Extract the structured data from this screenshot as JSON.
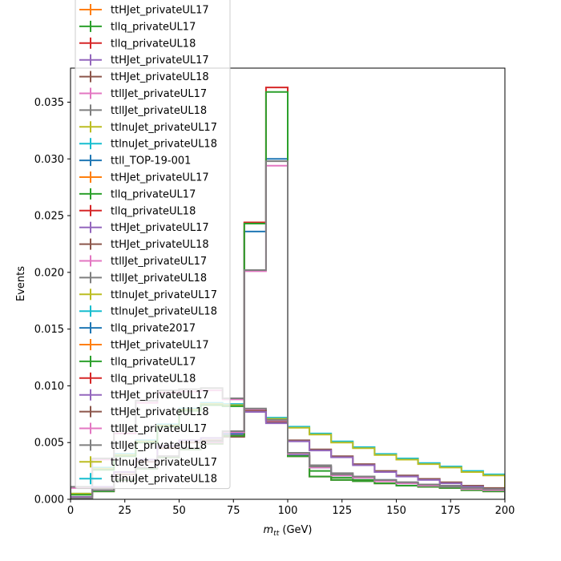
{
  "chart_data": {
    "type": "line",
    "drawstyle": "steps",
    "xlabel_main": "m",
    "xlabel_sub": "tt",
    "xlabel_unit": " (GeV)",
    "ylabel": "Events",
    "xlim": [
      0,
      200
    ],
    "ylim": [
      0,
      0.038
    ],
    "xticks": [
      "0",
      "25",
      "50",
      "75",
      "100",
      "125",
      "150",
      "175",
      "200"
    ],
    "yticks": [
      "0.000",
      "0.005",
      "0.010",
      "0.015",
      "0.020",
      "0.025",
      "0.030",
      "0.035"
    ],
    "grid": false,
    "legend_position": "upper-left",
    "bin_edges": [
      0,
      10,
      20,
      30,
      40,
      50,
      60,
      70,
      80,
      90,
      100,
      110,
      120,
      130,
      140,
      150,
      160,
      170,
      180,
      190,
      200
    ],
    "legend": [
      {
        "name": "ttHJet_privateUL17",
        "color": "#ff7f0e"
      },
      {
        "name": "tllq_privateUL17",
        "color": "#2ca02c"
      },
      {
        "name": "tllq_privateUL18",
        "color": "#d62728"
      },
      {
        "name": "ttHJet_privateUL17",
        "color": "#9467bd"
      },
      {
        "name": "ttHJet_privateUL18",
        "color": "#8c564b"
      },
      {
        "name": "ttllJet_privateUL17",
        "color": "#e377c2"
      },
      {
        "name": "ttllJet_privateUL18",
        "color": "#7f7f7f"
      },
      {
        "name": "ttlnuJet_privateUL17",
        "color": "#bcbd22"
      },
      {
        "name": "ttlnuJet_privateUL18",
        "color": "#17becf"
      },
      {
        "name": "ttll_TOP-19-001",
        "color": "#1f77b4"
      },
      {
        "name": "ttHJet_privateUL17",
        "color": "#ff7f0e"
      },
      {
        "name": "tllq_privateUL17",
        "color": "#2ca02c"
      },
      {
        "name": "tllq_privateUL18",
        "color": "#d62728"
      },
      {
        "name": "ttHJet_privateUL17",
        "color": "#9467bd"
      },
      {
        "name": "ttHJet_privateUL18",
        "color": "#8c564b"
      },
      {
        "name": "ttllJet_privateUL17",
        "color": "#e377c2"
      },
      {
        "name": "ttllJet_privateUL18",
        "color": "#7f7f7f"
      },
      {
        "name": "ttlnuJet_privateUL17",
        "color": "#bcbd22"
      },
      {
        "name": "ttlnuJet_privateUL18",
        "color": "#17becf"
      },
      {
        "name": "tllq_private2017",
        "color": "#1f77b4"
      },
      {
        "name": "ttHJet_privateUL17",
        "color": "#ff7f0e"
      },
      {
        "name": "tllq_privateUL17",
        "color": "#2ca02c"
      },
      {
        "name": "tllq_privateUL18",
        "color": "#d62728"
      },
      {
        "name": "ttHJet_privateUL17",
        "color": "#9467bd"
      },
      {
        "name": "ttHJet_privateUL18",
        "color": "#8c564b"
      },
      {
        "name": "ttllJet_privateUL17",
        "color": "#e377c2"
      },
      {
        "name": "ttllJet_privateUL18",
        "color": "#7f7f7f"
      },
      {
        "name": "ttlnuJet_privateUL17",
        "color": "#bcbd22"
      },
      {
        "name": "ttlnuJet_privateUL18",
        "color": "#17becf"
      }
    ],
    "series": [
      {
        "color": "#17becf",
        "values": [
          0.0005,
          0.0028,
          0.004,
          0.0052,
          0.0066,
          0.008,
          0.0085,
          0.0084,
          0.0079,
          0.0072,
          0.0064,
          0.0058,
          0.0051,
          0.0046,
          0.004,
          0.0036,
          0.0032,
          0.0029,
          0.0025,
          0.0022
        ]
      },
      {
        "color": "#bcbd22",
        "values": [
          0.0005,
          0.0027,
          0.0039,
          0.0051,
          0.0065,
          0.0079,
          0.0084,
          0.0083,
          0.0078,
          0.0071,
          0.0063,
          0.0057,
          0.005,
          0.0045,
          0.0039,
          0.0035,
          0.0031,
          0.0028,
          0.0024,
          0.0021
        ]
      },
      {
        "color": "#2ca02c",
        "values": [
          0.0004,
          0.0026,
          0.0038,
          0.005,
          0.0064,
          0.0078,
          0.0083,
          0.0082,
          0.0077,
          0.007,
          0.0038,
          0.0025,
          0.0019,
          0.0017,
          0.0014,
          0.0012,
          0.0011,
          0.001,
          0.0009,
          0.0008
        ]
      },
      {
        "color": "#e377c2",
        "values": [
          0.001,
          0.0035,
          0.0058,
          0.0085,
          0.0094,
          0.0095,
          0.0096,
          0.0088,
          0.0079,
          0.0069,
          0.004,
          0.0029,
          0.0022,
          0.0019,
          0.0016,
          0.0014,
          0.0013,
          0.0011,
          0.001,
          0.0008
        ]
      },
      {
        "color": "#7f7f7f",
        "values": [
          0.0011,
          0.0036,
          0.006,
          0.0087,
          0.0096,
          0.0097,
          0.0098,
          0.0089,
          0.008,
          0.007,
          0.0041,
          0.003,
          0.0023,
          0.002,
          0.0017,
          0.0015,
          0.0013,
          0.0012,
          0.001,
          0.0009
        ]
      },
      {
        "color": "#8c564b",
        "values": [
          0.0002,
          0.001,
          0.0022,
          0.0033,
          0.0045,
          0.005,
          0.0052,
          0.0055,
          0.0078,
          0.0068,
          0.0052,
          0.0044,
          0.0038,
          0.0031,
          0.0025,
          0.0021,
          0.0018,
          0.0015,
          0.0012,
          0.001
        ]
      },
      {
        "color": "#9467bd",
        "values": [
          0.0002,
          0.0011,
          0.0024,
          0.0035,
          0.0047,
          0.0052,
          0.0054,
          0.0057,
          0.0077,
          0.0067,
          0.0051,
          0.0043,
          0.0037,
          0.003,
          0.0024,
          0.002,
          0.0017,
          0.0014,
          0.0011,
          0.0009
        ]
      },
      {
        "color": "#1f77b4",
        "values": [
          0.0001,
          0.0008,
          0.0018,
          0.0028,
          0.0038,
          0.0045,
          0.005,
          0.0058,
          0.0236,
          0.03,
          0.0039,
          0.0028,
          0.0021,
          0.0019,
          0.0017,
          0.0014,
          0.0012,
          0.0011,
          0.001,
          0.0008
        ]
      },
      {
        "color": "#d62728",
        "values": [
          0.0001,
          0.0007,
          0.0017,
          0.0027,
          0.0037,
          0.0044,
          0.0049,
          0.0056,
          0.0244,
          0.0363,
          0.0038,
          0.002,
          0.0017,
          0.0016,
          0.0014,
          0.0012,
          0.0011,
          0.001,
          0.0008,
          0.0007
        ]
      },
      {
        "color": "#2ca02c",
        "values": [
          0.0001,
          0.0007,
          0.0017,
          0.0027,
          0.0037,
          0.0044,
          0.0049,
          0.0056,
          0.0243,
          0.0359,
          0.0038,
          0.002,
          0.0017,
          0.0016,
          0.0014,
          0.0012,
          0.0011,
          0.001,
          0.0008,
          0.0007
        ]
      },
      {
        "color": "#e377c2",
        "values": [
          0.0001,
          0.0008,
          0.0018,
          0.0028,
          0.0038,
          0.0045,
          0.005,
          0.0059,
          0.0201,
          0.0294,
          0.004,
          0.0028,
          0.0021,
          0.0019,
          0.0016,
          0.0014,
          0.0012,
          0.0011,
          0.0009,
          0.0008
        ]
      },
      {
        "color": "#7f7f7f",
        "values": [
          0.0001,
          0.0008,
          0.0018,
          0.0028,
          0.0038,
          0.0045,
          0.0051,
          0.006,
          0.0202,
          0.0298,
          0.0041,
          0.0029,
          0.0022,
          0.002,
          0.0017,
          0.0015,
          0.0013,
          0.0011,
          0.001,
          0.0009
        ]
      }
    ]
  }
}
